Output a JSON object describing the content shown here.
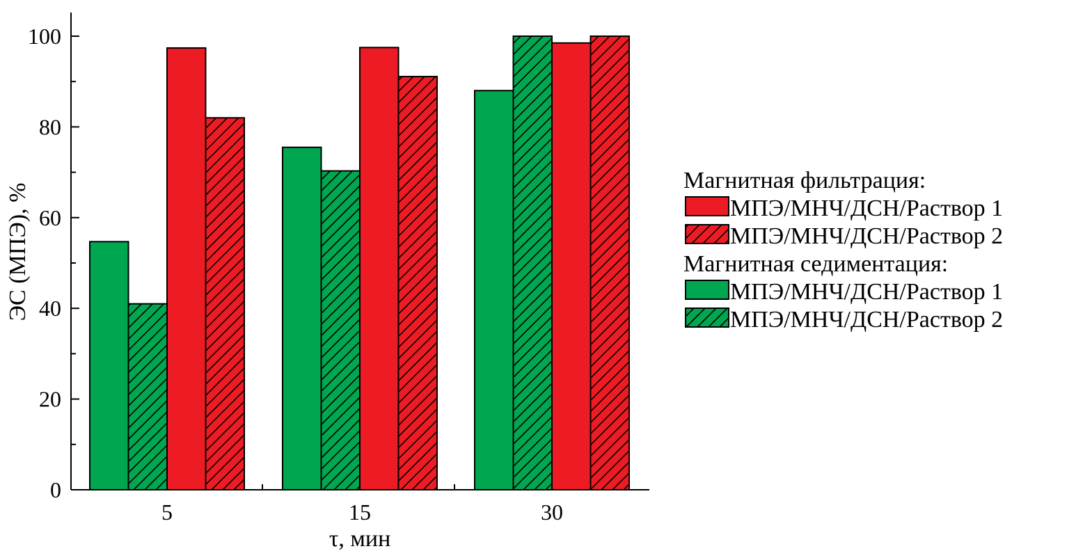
{
  "chart_data": {
    "type": "bar",
    "categories": [
      "5",
      "15",
      "30"
    ],
    "xlabel": "τ, мин",
    "ylabel": "ЭС (МПЭ), %",
    "ylim": [
      0,
      100
    ],
    "yticks": [
      0,
      20,
      40,
      60,
      80,
      100
    ],
    "grid": false,
    "legend_position": "right",
    "series": [
      {
        "group": "Магнитная седиментация",
        "name": "МПЭ/МНЧ/ДСН/Раствор 1",
        "color": "#00a650",
        "hatched": false,
        "values": [
          54.7,
          75.5,
          88.0
        ]
      },
      {
        "group": "Магнитная седиментация",
        "name": "МПЭ/МНЧ/ДСН/Раствор 2",
        "color": "#00a650",
        "hatched": true,
        "values": [
          41.0,
          70.3,
          100.0
        ]
      },
      {
        "group": "Магнитная фильтрация",
        "name": "МПЭ/МНЧ/ДСН/Раствор 1",
        "color": "#ed1c24",
        "hatched": false,
        "values": [
          97.4,
          97.5,
          98.5
        ]
      },
      {
        "group": "Магнитная фильтрация",
        "name": "МПЭ/МНЧ/ДСН/Раствор 2",
        "color": "#ed1c24",
        "hatched": true,
        "values": [
          82.0,
          91.1,
          100.0
        ]
      }
    ],
    "legend": [
      {
        "kind": "header",
        "text": "Магнитная фильтрация:"
      },
      {
        "kind": "item",
        "text": "МПЭ/МНЧ/ДСН/Раствор 1",
        "color": "#ed1c24",
        "hatched": false
      },
      {
        "kind": "item",
        "text": "МПЭ/МНЧ/ДСН/Раствор 2",
        "color": "#ed1c24",
        "hatched": true
      },
      {
        "kind": "header",
        "text": "Магнитная седиментация:"
      },
      {
        "kind": "item",
        "text": "МПЭ/МНЧ/ДСН/Раствор 1",
        "color": "#00a650",
        "hatched": false
      },
      {
        "kind": "item",
        "text": "МПЭ/МНЧ/ДСН/Раствор 2",
        "color": "#00a650",
        "hatched": true
      }
    ]
  }
}
